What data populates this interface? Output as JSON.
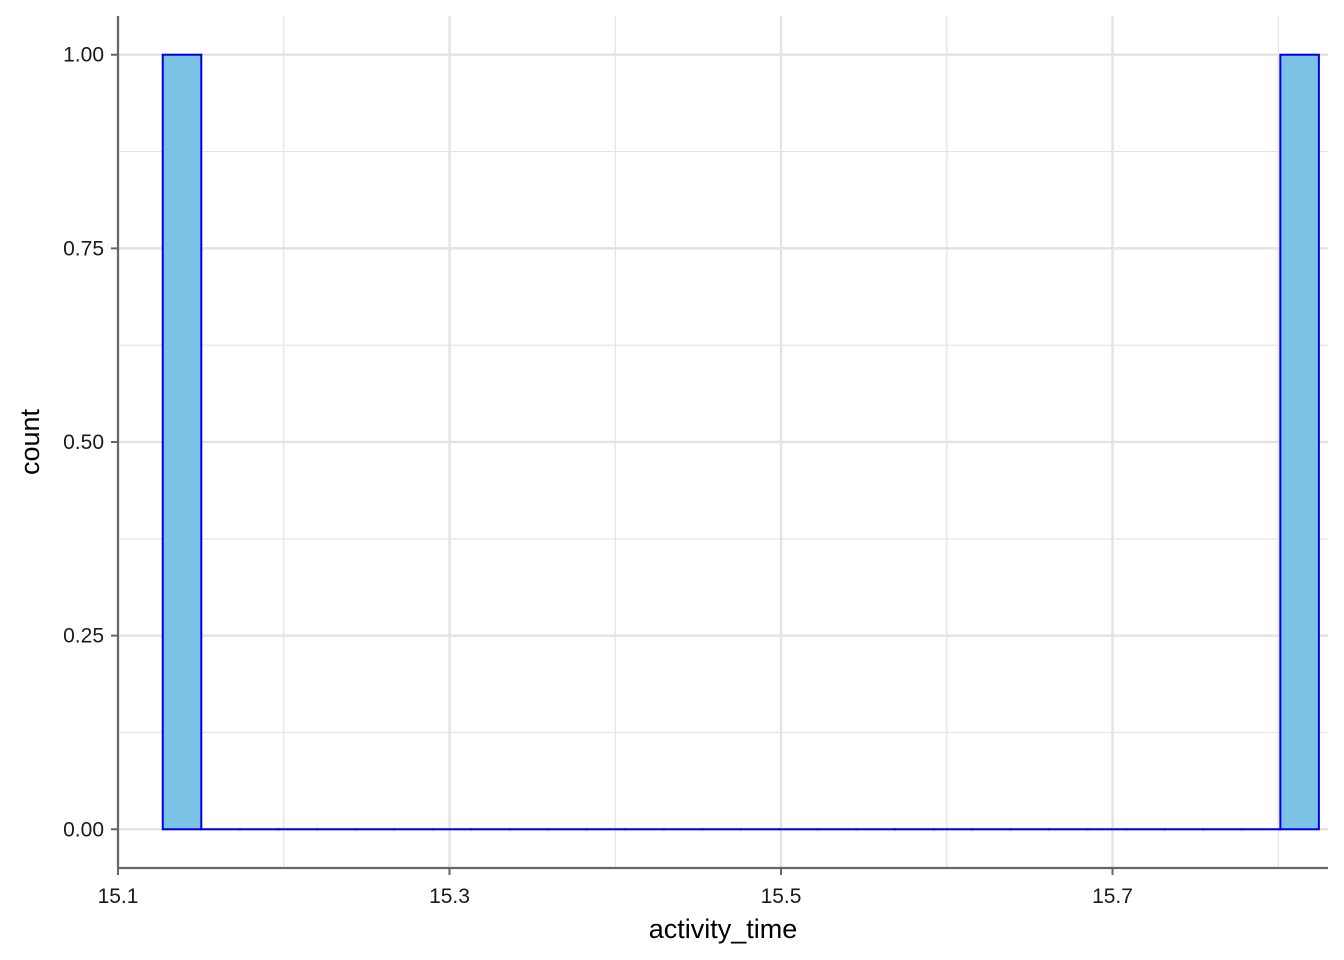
{
  "chart_data": {
    "type": "bar",
    "subtype": "histogram",
    "xlabel": "activity_time",
    "ylabel": "count",
    "xlim": [
      15.1,
      15.83
    ],
    "ylim": [
      -0.05,
      1.05
    ],
    "x_ticks": [
      {
        "value": 15.1,
        "label": "15.1"
      },
      {
        "value": 15.3,
        "label": "15.3"
      },
      {
        "value": 15.5,
        "label": "15.5"
      },
      {
        "value": 15.7,
        "label": "15.7"
      }
    ],
    "x_minor_grid": [
      15.2,
      15.4,
      15.6,
      15.8
    ],
    "y_ticks": [
      {
        "value": 0.0,
        "label": "0.00"
      },
      {
        "value": 0.25,
        "label": "0.25"
      },
      {
        "value": 0.5,
        "label": "0.50"
      },
      {
        "value": 0.75,
        "label": "0.75"
      },
      {
        "value": 1.0,
        "label": "1.00"
      }
    ],
    "y_minor_grid": [
      0.125,
      0.375,
      0.625,
      0.875
    ],
    "bins": {
      "start": 15.127,
      "end": 15.8245,
      "count": 30,
      "counts": [
        1,
        0,
        0,
        0,
        0,
        0,
        0,
        0,
        0,
        0,
        0,
        0,
        0,
        0,
        0,
        0,
        0,
        0,
        0,
        0,
        0,
        0,
        0,
        0,
        0,
        0,
        0,
        0,
        0,
        1
      ]
    },
    "grid": true,
    "legend": "none",
    "colors": {
      "bar_fill": "#7bc3e6",
      "bar_stroke": "#0000e0",
      "grid": "#e3e3e3",
      "axis": "#666666"
    }
  }
}
